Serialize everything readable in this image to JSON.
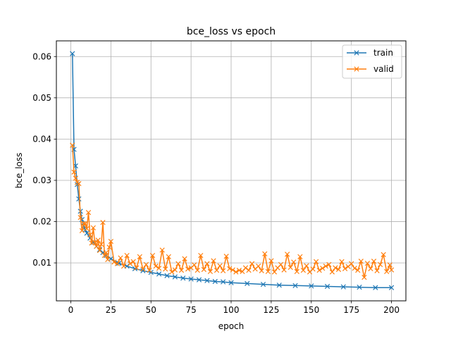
{
  "chart_data": {
    "type": "line",
    "title": "bce_loss vs epoch",
    "xlabel": "epoch",
    "ylabel": "bce_loss",
    "xlim": [
      -9,
      209
    ],
    "ylim": [
      0.0008,
      0.0638
    ],
    "xticks": [
      0,
      25,
      50,
      75,
      100,
      125,
      150,
      175,
      200
    ],
    "xtick_labels": [
      "0",
      "25",
      "50",
      "75",
      "100",
      "125",
      "150",
      "175",
      "200"
    ],
    "yticks": [
      0.01,
      0.02,
      0.03,
      0.04,
      0.05,
      0.06
    ],
    "ytick_labels": [
      "0.01",
      "0.02",
      "0.03",
      "0.04",
      "0.05",
      "0.06"
    ],
    "grid": true,
    "legend_position": "top-right",
    "marker": "x",
    "series": [
      {
        "name": "train",
        "color": "#1f77b4",
        "x": [
          1,
          2,
          3,
          4,
          5,
          6,
          7,
          8,
          9,
          10,
          12,
          14,
          16,
          18,
          20,
          22,
          25,
          30,
          35,
          40,
          45,
          50,
          55,
          60,
          65,
          70,
          75,
          80,
          85,
          90,
          95,
          100,
          110,
          120,
          130,
          140,
          150,
          160,
          170,
          180,
          190,
          200
        ],
        "y": [
          0.0607,
          0.0375,
          0.0335,
          0.029,
          0.0255,
          0.0225,
          0.0205,
          0.019,
          0.018,
          0.0172,
          0.016,
          0.015,
          0.014,
          0.0132,
          0.0125,
          0.0118,
          0.011,
          0.0099,
          0.0092,
          0.0086,
          0.0081,
          0.0077,
          0.0073,
          0.0069,
          0.0066,
          0.0063,
          0.0061,
          0.0059,
          0.0057,
          0.0055,
          0.0054,
          0.0052,
          0.005,
          0.0048,
          0.0046,
          0.0045,
          0.0044,
          0.0043,
          0.0042,
          0.0041,
          0.004,
          0.004
        ]
      },
      {
        "name": "valid",
        "color": "#ff7f0e",
        "x": [
          1,
          2,
          3,
          4,
          5,
          6,
          7,
          8,
          9,
          10,
          11,
          12,
          13,
          14,
          15,
          16,
          17,
          18,
          19,
          20,
          21,
          22,
          23,
          24,
          25,
          27,
          29,
          31,
          33,
          35,
          37,
          39,
          41,
          43,
          45,
          47,
          49,
          51,
          53,
          55,
          57,
          59,
          61,
          63,
          65,
          67,
          69,
          71,
          73,
          75,
          77,
          79,
          81,
          83,
          85,
          87,
          89,
          91,
          93,
          95,
          97,
          99,
          101,
          103,
          105,
          107,
          109,
          111,
          113,
          115,
          117,
          119,
          121,
          123,
          125,
          127,
          129,
          131,
          133,
          135,
          137,
          139,
          141,
          143,
          145,
          147,
          149,
          151,
          153,
          155,
          157,
          159,
          161,
          163,
          165,
          167,
          169,
          171,
          173,
          175,
          177,
          179,
          181,
          183,
          185,
          187,
          189,
          191,
          193,
          195,
          197,
          199,
          200
        ],
        "y": [
          0.0385,
          0.032,
          0.0305,
          0.0295,
          0.0292,
          0.021,
          0.0178,
          0.0195,
          0.0195,
          0.0183,
          0.0222,
          0.0168,
          0.0148,
          0.0185,
          0.015,
          0.014,
          0.0155,
          0.013,
          0.0145,
          0.0198,
          0.0118,
          0.0125,
          0.0108,
          0.0138,
          0.0152,
          0.0102,
          0.0098,
          0.0112,
          0.0092,
          0.0118,
          0.0098,
          0.0103,
          0.0088,
          0.0115,
          0.0085,
          0.0096,
          0.0082,
          0.0118,
          0.0092,
          0.0087,
          0.0131,
          0.0085,
          0.0115,
          0.0078,
          0.0083,
          0.0098,
          0.0082,
          0.011,
          0.0085,
          0.0088,
          0.0095,
          0.0082,
          0.0118,
          0.0084,
          0.0098,
          0.0079,
          0.0105,
          0.0082,
          0.0093,
          0.0081,
          0.0116,
          0.0086,
          0.0083,
          0.0078,
          0.0082,
          0.0079,
          0.0088,
          0.0082,
          0.0098,
          0.0085,
          0.0092,
          0.0081,
          0.0122,
          0.0079,
          0.0105,
          0.0078,
          0.0088,
          0.0096,
          0.0083,
          0.0121,
          0.0089,
          0.0102,
          0.0079,
          0.0115,
          0.0082,
          0.0093,
          0.0078,
          0.0085,
          0.0103,
          0.0082,
          0.0087,
          0.0092,
          0.0096,
          0.0078,
          0.0088,
          0.0084,
          0.0103,
          0.0086,
          0.0091,
          0.0098,
          0.0087,
          0.0082,
          0.0104,
          0.0065,
          0.0099,
          0.0086,
          0.0104,
          0.0081,
          0.0096,
          0.012,
          0.0079,
          0.0095,
          0.0083
        ]
      }
    ]
  }
}
